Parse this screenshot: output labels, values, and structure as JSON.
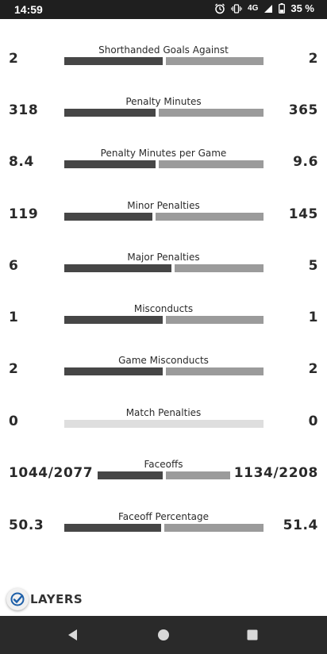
{
  "status_bar": {
    "time": "14:59",
    "network": "4G",
    "battery": "35 %",
    "icons": [
      "alarm-icon",
      "vibrate-icon",
      "signal-icon",
      "battery-icon"
    ]
  },
  "stats": [
    {
      "label": "Shorthanded Goals Against",
      "left": "2",
      "right": "2",
      "home_fraction": 0.5
    },
    {
      "label": "Penalty Minutes",
      "left": "318",
      "right": "365",
      "home_fraction": 0.466
    },
    {
      "label": "Penalty Minutes per Game",
      "left": "8.4",
      "right": "9.6",
      "home_fraction": 0.466
    },
    {
      "label": "Minor Penalties",
      "left": "119",
      "right": "145",
      "home_fraction": 0.451
    },
    {
      "label": "Major Penalties",
      "left": "6",
      "right": "5",
      "home_fraction": 0.545
    },
    {
      "label": "Misconducts",
      "left": "1",
      "right": "1",
      "home_fraction": 0.5
    },
    {
      "label": "Game Misconducts",
      "left": "2",
      "right": "2",
      "home_fraction": 0.5
    },
    {
      "label": "Match Penalties",
      "left": "0",
      "right": "0",
      "home_fraction": null
    },
    {
      "label": "Faceoffs",
      "left": "1044/2077",
      "right": "1134/2208",
      "home_fraction": 0.503
    },
    {
      "label": "Faceoff Percentage",
      "left": "50.3",
      "right": "51.4",
      "home_fraction": 0.495
    }
  ],
  "brand": {
    "text": "LAYERS"
  },
  "nav": {
    "buttons": [
      "back-icon",
      "home-icon",
      "recent-apps-icon"
    ]
  },
  "colors": {
    "home_bar": "#464646",
    "away_bar": "#9b9b9b",
    "empty_bar": "#dedede",
    "nav_bg": "#2a2a2a",
    "status_bg": "#1f1f1f"
  }
}
